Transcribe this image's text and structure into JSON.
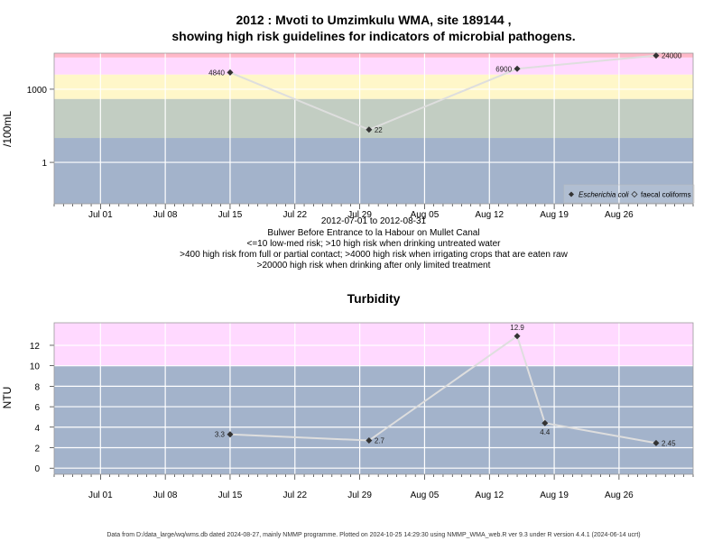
{
  "colors": {
    "band_blue": "#a3b3cb",
    "band_green": "#c2cdc2",
    "band_yellow": "#fff7c9",
    "band_pink": "#ffd9ff",
    "band_red": "#ffb8c8",
    "grid": "#ffffff",
    "line": "#dedede",
    "point": "#333333"
  },
  "chart_data": [
    {
      "type": "line",
      "title_lines": [
        "2012 : Mvoti to Umzimkulu WMA, site 189144 ,",
        "showing high risk guidelines for indicators of microbial pathogens."
      ],
      "ylabel": "/100mL",
      "yscale": "log",
      "ylim": [
        0.02,
        30000
      ],
      "xlim": [
        "2012-06-26",
        "2012-09-03"
      ],
      "x_ticks": [
        "Jul 01",
        "Jul 08",
        "Jul 15",
        "Jul 22",
        "Jul 29",
        "Aug 05",
        "Aug 12",
        "Aug 19",
        "Aug 26"
      ],
      "x_tick_dates": [
        "2012-07-01",
        "2012-07-08",
        "2012-07-15",
        "2012-07-22",
        "2012-07-29",
        "2012-08-05",
        "2012-08-12",
        "2012-08-19",
        "2012-08-26"
      ],
      "y_ticks": [
        1,
        1000
      ],
      "y_tick_labels": [
        "1",
        "1000"
      ],
      "bands": [
        {
          "from": 0.02,
          "to": 10,
          "color": "band_blue"
        },
        {
          "from": 10,
          "to": 400,
          "color": "band_green"
        },
        {
          "from": 400,
          "to": 4000,
          "color": "band_yellow"
        },
        {
          "from": 4000,
          "to": 20000,
          "color": "band_pink"
        },
        {
          "from": 20000,
          "to": 30000,
          "color": "band_red"
        }
      ],
      "series": [
        {
          "name": "Escherichia coli",
          "x": [
            "2012-07-15",
            "2012-07-30",
            "2012-08-15",
            "2012-08-30"
          ],
          "values": [
            4840,
            22,
            6900,
            24000
          ],
          "labels": [
            "4840",
            "22",
            "6900",
            "24000"
          ],
          "label_side": [
            "left",
            "right",
            "left",
            "right"
          ]
        }
      ],
      "legend": {
        "placement": "bottom-right",
        "entries": [
          {
            "name": "Escherichia coli",
            "marker": "filled-diamond",
            "italic": true
          },
          {
            "name": "faecal coliforms",
            "marker": "open-diamond",
            "italic": false
          }
        ]
      },
      "caption_lines": [
        "2012-07-01 to 2012-08-31",
        "Bulwer Before Entrance to la Habour on Mullet Canal",
        "<=10 low-med risk; >10 high risk when drinking untreated water",
        ">400 high risk from full or partial contact; >4000 high risk when irrigating crops that are eaten raw",
        ">20000 high risk when drinking after only limited treatment"
      ],
      "grid": true
    },
    {
      "type": "line",
      "title": "Turbidity",
      "ylabel": "NTU",
      "yscale": "linear",
      "ylim": [
        -0.6,
        14.2
      ],
      "xlim": [
        "2012-06-26",
        "2012-09-03"
      ],
      "x_ticks": [
        "Jul 01",
        "Jul 08",
        "Jul 15",
        "Jul 22",
        "Jul 29",
        "Aug 05",
        "Aug 12",
        "Aug 19",
        "Aug 26"
      ],
      "x_tick_dates": [
        "2012-07-01",
        "2012-07-08",
        "2012-07-15",
        "2012-07-22",
        "2012-07-29",
        "2012-08-05",
        "2012-08-12",
        "2012-08-19",
        "2012-08-26"
      ],
      "y_ticks": [
        0,
        2,
        4,
        6,
        8,
        10,
        12
      ],
      "y_tick_labels": [
        "0",
        "2",
        "4",
        "6",
        "8",
        "10",
        "12"
      ],
      "bands": [
        {
          "from": -0.6,
          "to": 10,
          "color": "band_blue"
        },
        {
          "from": 10,
          "to": 14.2,
          "color": "band_pink"
        }
      ],
      "series": [
        {
          "name": "Turbidity",
          "x": [
            "2012-07-15",
            "2012-07-30",
            "2012-08-15",
            "2012-08-18",
            "2012-08-30"
          ],
          "values": [
            3.3,
            2.7,
            12.9,
            4.4,
            2.45
          ],
          "labels": [
            "3.3",
            "2.7",
            "12.9",
            "4.4",
            "2.45"
          ],
          "label_side": [
            "left",
            "right",
            "above",
            "below",
            "right"
          ]
        }
      ],
      "grid": true
    }
  ],
  "footer": "Data from D:/data_large/wq/wms.db dated 2024-08-27, mainly NMMP programme. Plotted on 2024-10-25 14:29:30 using NMMP_WMA_web.R ver 9.3 under R version 4.4.1 (2024-06-14 ucrt)"
}
